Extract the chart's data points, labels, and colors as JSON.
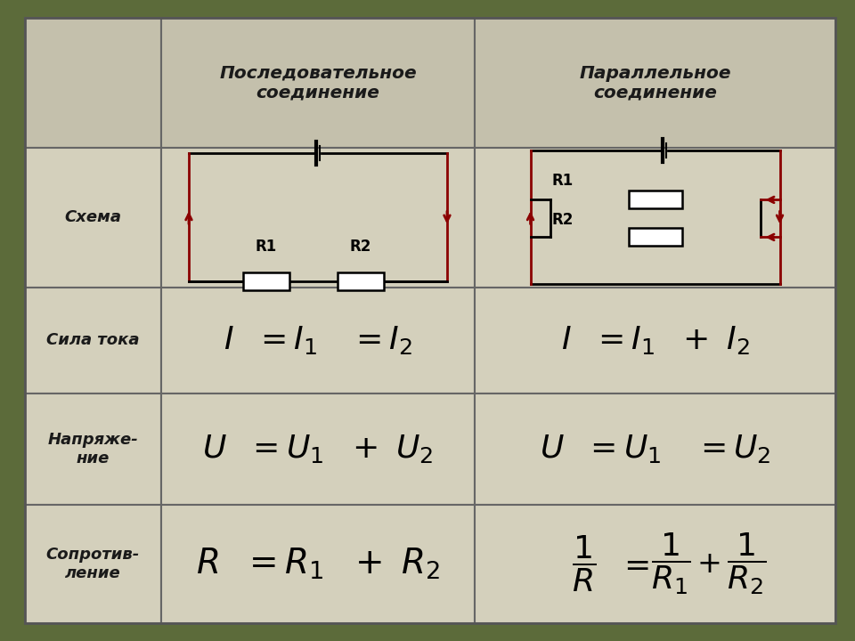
{
  "bg_color": "#5c6b3a",
  "cell_bg": "#d4d0bc",
  "header_bg": "#c4c0ac",
  "grid_color": "#777777",
  "text_color": "#1a1a1a",
  "arrow_color": "#8b0000",
  "wire_color": "#1a1a1a",
  "resistor_fill": "#ffffff",
  "title_seq": "Последовательное\nсоединение",
  "title_par": "Параллельное\nсоединение",
  "row_label_schema": "Схема",
  "row_label_current": "Сила тока",
  "row_label_voltage": "Напряже-\nние",
  "row_label_resist": "Сопротив-\nление"
}
